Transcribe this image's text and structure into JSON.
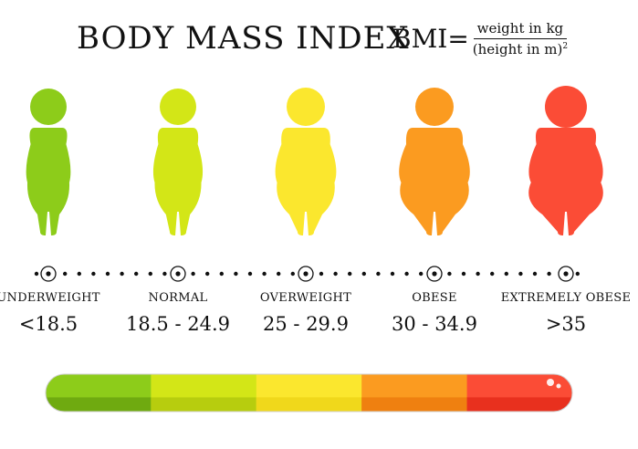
{
  "header": {
    "title": "BODY MASS INDEX",
    "formula_lhs": "BMI",
    "formula_eq": "=",
    "formula_numerator": "weight in kg",
    "formula_denominator": "(height in m)",
    "formula_exponent": "2"
  },
  "categories": [
    {
      "label": "UNDERWEIGHT",
      "range": "<18.5",
      "color": "#8dcc1a"
    },
    {
      "label": "NORMAL",
      "range": "18.5 - 24.9",
      "color": "#d3e617"
    },
    {
      "label": "OVERWEIGHT",
      "range": "25 - 29.9",
      "color": "#fbe72e"
    },
    {
      "label": "OBESE",
      "range": "30 - 34.9",
      "color": "#fb9b20"
    },
    {
      "label": "EXTREMELY OBESE",
      "range": ">35",
      "color": "#fb4c36"
    }
  ],
  "bar": {
    "segment_colors": [
      "#8dcc1a",
      "#d3e617",
      "#fbe72e",
      "#fb9b20",
      "#fb4c36"
    ],
    "segment_shadow_colors": [
      "#6faa10",
      "#b7cd0e",
      "#f0d81b",
      "#ef8010",
      "#e8301e"
    ]
  }
}
